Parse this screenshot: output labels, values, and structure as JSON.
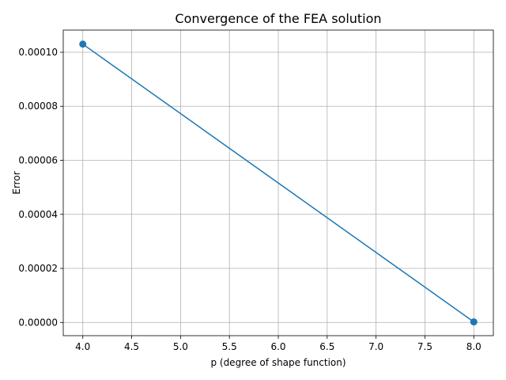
{
  "chart_data": {
    "type": "line",
    "title": "Convergence of the FEA solution",
    "xlabel": "p (degree of shape function)",
    "ylabel": "Error",
    "x": [
      4.0,
      8.0
    ],
    "series": [
      {
        "values": [
          0.000103,
          2e-07
        ],
        "color": "#1f77b4",
        "marker": "circle"
      }
    ],
    "xlim": [
      3.8,
      8.2
    ],
    "ylim": [
      -4.9e-06,
      0.0001082
    ],
    "xticks": [
      4.0,
      4.5,
      5.0,
      5.5,
      6.0,
      6.5,
      7.0,
      7.5,
      8.0
    ],
    "xtick_labels": [
      "4.0",
      "4.5",
      "5.0",
      "5.5",
      "6.0",
      "6.5",
      "7.0",
      "7.5",
      "8.0"
    ],
    "yticks": [
      0.0,
      2e-05,
      4e-05,
      6e-05,
      8e-05,
      0.0001
    ],
    "ytick_labels": [
      "0.00000",
      "0.00002",
      "0.00004",
      "0.00006",
      "0.00008",
      "0.00010"
    ],
    "grid": true
  }
}
